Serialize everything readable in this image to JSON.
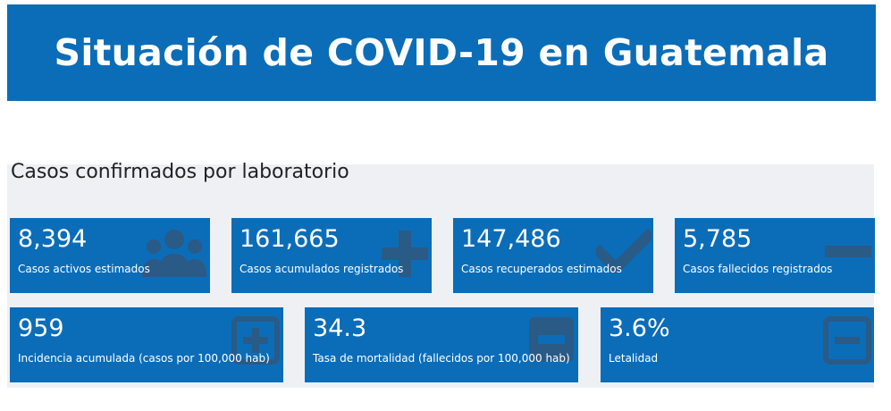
{
  "header": {
    "title": "Situación de COVID-19 en Guatemala"
  },
  "section": {
    "title": "Casos confirmados por laboratorio"
  },
  "colors": {
    "accent": "#0b6db8",
    "panel_bg": "#eef0f4",
    "icon_tint": "#2a5a86"
  },
  "cards": [
    {
      "value": "8,394",
      "label": "Casos activos estimados",
      "icon": "people-icon"
    },
    {
      "value": "161,665",
      "label": "Casos acumulados registrados",
      "icon": "plus-icon"
    },
    {
      "value": "147,486",
      "label": "Casos recuperados estimados",
      "icon": "check-icon"
    },
    {
      "value": "5,785",
      "label": "Casos fallecidos registrados",
      "icon": "minus-icon"
    },
    {
      "value": "959",
      "label": "Incidencia acumulada (casos por 100,000 hab)",
      "icon": "plus-square-icon"
    },
    {
      "value": "34.3",
      "label": "Tasa de mortalidad (fallecidos por 100,000 hab)",
      "icon": "minus-square-filled-icon"
    },
    {
      "value": "3.6%",
      "label": "Letalidad",
      "icon": "minus-square-icon"
    }
  ]
}
